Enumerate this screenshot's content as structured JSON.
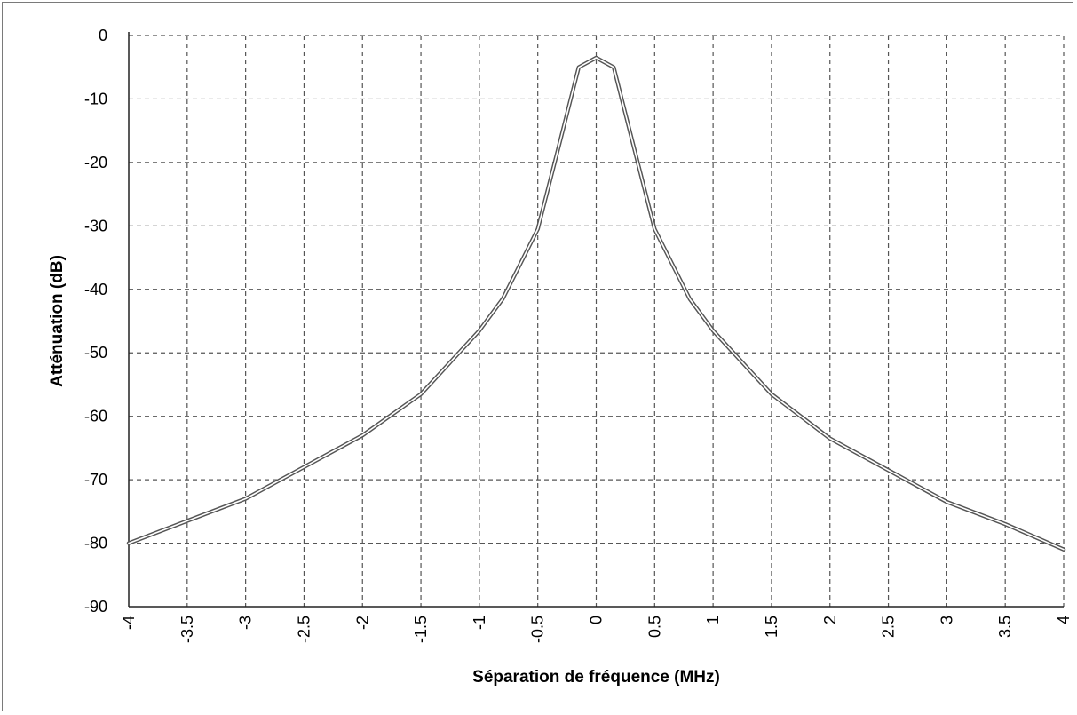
{
  "chart_data": {
    "type": "line",
    "title": "",
    "xlabel": "Séparation de fréquence (MHz)",
    "ylabel": "Atténuation (dB)",
    "xlim": [
      -4,
      4
    ],
    "ylim": [
      -90,
      0
    ],
    "x_ticks": [
      -4,
      -3.5,
      -3,
      -2.5,
      -2,
      -1.5,
      -1,
      -0.5,
      0,
      0.5,
      1,
      1.5,
      2,
      2.5,
      3,
      3.5,
      4
    ],
    "x_tick_labels": [
      "-4",
      "-3.5",
      "-3",
      "-2.5",
      "-2",
      "-1.5",
      "-1",
      "-0.5",
      "0",
      "0.5",
      "1",
      "1.5",
      "2",
      "2.5",
      "3",
      "3.5",
      "4"
    ],
    "y_ticks": [
      0,
      -10,
      -20,
      -30,
      -40,
      -50,
      -60,
      -70,
      -80,
      -90
    ],
    "y_tick_labels": [
      "0",
      "-10",
      "-20",
      "-30",
      "-40",
      "-50",
      "-60",
      "-70",
      "-80",
      "-90"
    ],
    "grid": true,
    "legend": "none",
    "series": [
      {
        "color": "#555555",
        "x": [
          -4,
          -3.5,
          -3,
          -2.5,
          -2,
          -1.5,
          -1,
          -0.8,
          -0.5,
          -0.3,
          -0.15,
          0,
          0.15,
          0.3,
          0.5,
          0.8,
          1,
          1.5,
          2,
          2.5,
          3,
          3.5,
          4
        ],
        "y": [
          -80,
          -76.5,
          -73,
          -68,
          -63,
          -56.5,
          -46.5,
          -41.5,
          -30.5,
          -16,
          -5,
          -3.5,
          -5,
          -16,
          -30.5,
          -41.5,
          -46.5,
          -56.5,
          -63.5,
          -68.5,
          -73.5,
          -77,
          -81
        ]
      }
    ]
  }
}
